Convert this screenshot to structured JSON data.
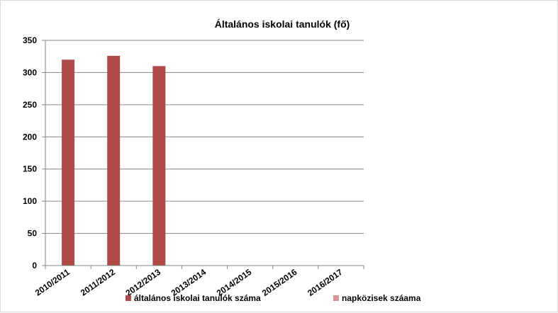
{
  "chart_data": {
    "type": "bar",
    "title": "Általános iskolai tanulók (fő)",
    "xlabel": "",
    "ylabel": "",
    "categories": [
      "2010/2011",
      "2011/2012",
      "2012/2013",
      "2013/2014",
      "2014/2015",
      "2015/2016",
      "2016/2017"
    ],
    "series": [
      {
        "name": "általános iskolai tanulók száma",
        "values": [
          320,
          326,
          310,
          null,
          null,
          null,
          null
        ],
        "color": "#B04A47"
      },
      {
        "name": "napközisek száama",
        "values": [
          null,
          null,
          null,
          null,
          null,
          null,
          null
        ],
        "color": "#D99694"
      }
    ],
    "ylim": [
      0,
      350
    ],
    "yticks": [
      0,
      50,
      100,
      150,
      200,
      250,
      300,
      350
    ],
    "grid": true,
    "legend_position": "bottom"
  }
}
